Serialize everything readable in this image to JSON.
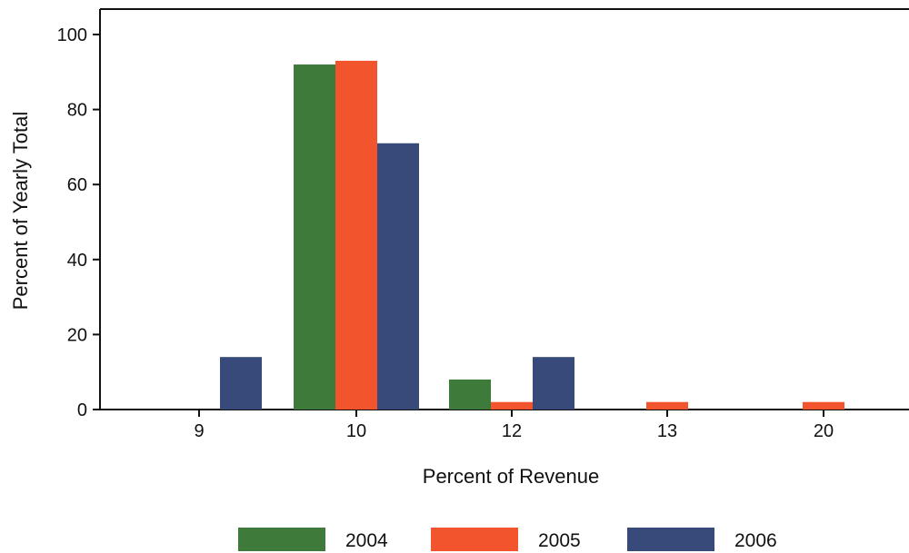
{
  "chart_data": {
    "type": "bar",
    "categories": [
      "9",
      "10",
      "12",
      "13",
      "20"
    ],
    "series": [
      {
        "name": "2004",
        "color": "#3e7a3a",
        "values": [
          0,
          92,
          8,
          0,
          0
        ]
      },
      {
        "name": "2005",
        "color": "#f2542d",
        "values": [
          0,
          93,
          2,
          2,
          2
        ]
      },
      {
        "name": "2006",
        "color": "#374a7a",
        "values": [
          14,
          71,
          14,
          0,
          0
        ]
      }
    ],
    "xlabel": "Percent of Revenue",
    "ylabel": "Percent of Yearly Total",
    "ylim": [
      0,
      100
    ],
    "yticks": [
      0,
      20,
      40,
      60,
      80,
      100
    ],
    "grid": false,
    "legend_position": "bottom"
  }
}
